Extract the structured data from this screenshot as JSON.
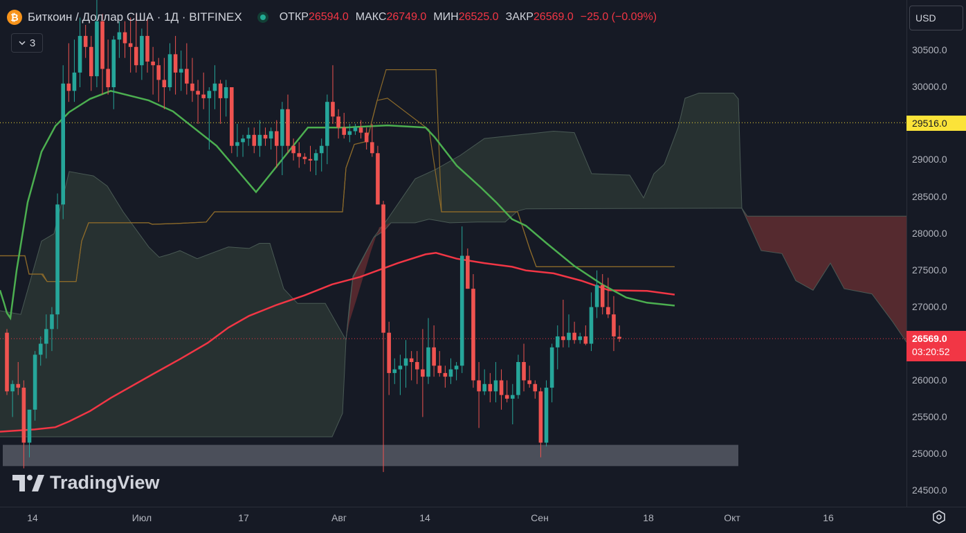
{
  "header": {
    "symbol_icon": "bitcoin-icon",
    "symbol_icon_glyph": "₿",
    "title": "Биткоин / Доллар США · 1Д · BITFINEX",
    "ohlc": {
      "open_label": "ОТКР",
      "open": "26594.0",
      "high_label": "МАКС",
      "high": "26749.0",
      "low_label": "МИН",
      "low": "26525.0",
      "close_label": "ЗАКР",
      "close": "26569.0",
      "change": "−25.0 (−0.09%)"
    }
  },
  "indicators_toggle": {
    "count": "3",
    "icon": "chevron-down-icon"
  },
  "currency": {
    "selected": "USD"
  },
  "price_axis": {
    "ticks": [
      "30500.0",
      "30000.0",
      "29516.0",
      "29000.0",
      "28500.0",
      "28000.0",
      "27500.0",
      "27000.0",
      "26569.0",
      "26000.0",
      "25500.0",
      "25000.0",
      "24500.0"
    ],
    "current_price": "26569.0",
    "countdown": "03:20:52",
    "marked_level": "29516.0"
  },
  "time_axis": {
    "ticks": [
      "14",
      "Июл",
      "17",
      "Авг",
      "14",
      "Сен",
      "18",
      "Окт",
      "16"
    ]
  },
  "watermark": {
    "brand": "TradingView",
    "icon": "tradingview-logo-icon"
  },
  "settings": {
    "icon": "gear-icon"
  },
  "colors": {
    "background": "#161a25",
    "up": "#26a69a",
    "down": "#ef5350",
    "sma_green": "#4caf50",
    "sma_red": "#f23645",
    "kumo_bull": "#2e3a36",
    "kumo_bear": "#5b2a30",
    "channel": "#8c6a2a"
  },
  "chart_data": {
    "type": "candlestick",
    "symbol": "Биткоин / Доллар США",
    "interval": "1Д",
    "exchange": "BITFINEX",
    "ylim": [
      24450,
      30950
    ],
    "candles": [
      [
        26650,
        26700,
        25800,
        25850
      ],
      [
        25850,
        26000,
        25500,
        25950
      ],
      [
        25950,
        26250,
        25800,
        25900
      ],
      [
        25900,
        26000,
        24800,
        25150
      ],
      [
        25150,
        25600,
        24950,
        25600
      ],
      [
        25600,
        26400,
        25450,
        26350
      ],
      [
        26350,
        26600,
        26200,
        26500
      ],
      [
        26500,
        26900,
        26300,
        26700
      ],
      [
        26700,
        27000,
        26400,
        26900
      ],
      [
        26900,
        28550,
        26700,
        28400
      ],
      [
        28400,
        30300,
        28200,
        30050
      ],
      [
        30050,
        30600,
        29800,
        29950
      ],
      [
        29950,
        30650,
        29800,
        30200
      ],
      [
        30200,
        30950,
        30000,
        30700
      ],
      [
        30700,
        30850,
        30400,
        30550
      ],
      [
        30550,
        30700,
        29950,
        30150
      ],
      [
        30150,
        31200,
        30000,
        30900
      ],
      [
        30900,
        31000,
        29900,
        30250
      ],
      [
        30250,
        30650,
        29900,
        30000
      ],
      [
        30000,
        30700,
        29700,
        30650
      ],
      [
        30650,
        30900,
        30400,
        30750
      ],
      [
        30750,
        30900,
        30400,
        30600
      ],
      [
        30600,
        30950,
        30200,
        30550
      ],
      [
        30550,
        31000,
        30200,
        30300
      ],
      [
        30300,
        30800,
        30100,
        30700
      ],
      [
        30700,
        30950,
        30200,
        30350
      ],
      [
        30350,
        30550,
        29900,
        30300
      ],
      [
        30300,
        30400,
        29800,
        30100
      ],
      [
        30100,
        30400,
        29700,
        30000
      ],
      [
        30000,
        30600,
        29950,
        30450
      ],
      [
        30450,
        30700,
        29900,
        30200
      ],
      [
        30200,
        30500,
        29950,
        30250
      ],
      [
        30250,
        30600,
        29900,
        30050
      ],
      [
        30050,
        30400,
        29800,
        29950
      ],
      [
        29950,
        30100,
        29500,
        29900
      ],
      [
        29900,
        30200,
        29700,
        29850
      ],
      [
        29850,
        30000,
        29150,
        29950
      ],
      [
        29950,
        30300,
        29700,
        30050
      ],
      [
        30050,
        30100,
        29500,
        29850
      ],
      [
        29850,
        30100,
        29600,
        30000
      ],
      [
        30000,
        30000,
        29100,
        29200
      ],
      [
        29200,
        29500,
        29050,
        29250
      ],
      [
        29250,
        29350,
        29050,
        29300
      ],
      [
        29300,
        29450,
        29200,
        29350
      ],
      [
        29350,
        29450,
        29100,
        29200
      ],
      [
        29200,
        29550,
        29050,
        29350
      ],
      [
        29350,
        29450,
        29200,
        29300
      ],
      [
        29300,
        29450,
        29150,
        29400
      ],
      [
        29400,
        29550,
        28900,
        29200
      ],
      [
        29200,
        29800,
        28800,
        29700
      ],
      [
        29700,
        29900,
        29100,
        29200
      ],
      [
        29200,
        29300,
        29000,
        29100
      ],
      [
        29100,
        29250,
        28900,
        29050
      ],
      [
        29050,
        29100,
        28950,
        29020
      ],
      [
        29020,
        29200,
        28850,
        29000
      ],
      [
        29000,
        29150,
        28800,
        29100
      ],
      [
        29100,
        29300,
        28850,
        29200
      ],
      [
        29200,
        29900,
        28950,
        29800
      ],
      [
        29800,
        30300,
        29500,
        29600
      ],
      [
        29600,
        29700,
        29300,
        29450
      ],
      [
        29450,
        29650,
        29300,
        29350
      ],
      [
        29350,
        29500,
        29250,
        29400
      ],
      [
        29400,
        29500,
        29350,
        29450
      ],
      [
        29450,
        29550,
        29300,
        29380
      ],
      [
        29380,
        29450,
        29150,
        29250
      ],
      [
        29250,
        29500,
        29050,
        29100
      ],
      [
        29100,
        29200,
        28400,
        28400
      ],
      [
        28400,
        28450,
        24750,
        26650
      ],
      [
        26650,
        26800,
        25800,
        26100
      ],
      [
        26100,
        26300,
        25950,
        26150
      ],
      [
        26150,
        26350,
        25800,
        26200
      ],
      [
        26200,
        26550,
        25900,
        26300
      ],
      [
        26300,
        26400,
        26000,
        26250
      ],
      [
        26250,
        26400,
        25950,
        26150
      ],
      [
        26150,
        26700,
        25500,
        26050
      ],
      [
        26050,
        26850,
        25950,
        26450
      ],
      [
        26450,
        26750,
        26050,
        26200
      ],
      [
        26200,
        26400,
        26050,
        26100
      ],
      [
        26100,
        26200,
        25900,
        26050
      ],
      [
        26050,
        26300,
        25950,
        26150
      ],
      [
        26150,
        26250,
        26000,
        26200
      ],
      [
        26200,
        28100,
        26100,
        27700
      ],
      [
        27700,
        27800,
        27250,
        27250
      ],
      [
        27250,
        27450,
        25900,
        26000
      ],
      [
        26000,
        26250,
        25350,
        25850
      ],
      [
        25850,
        26150,
        25800,
        25950
      ],
      [
        25950,
        26100,
        25700,
        25850
      ],
      [
        25850,
        26250,
        25700,
        26000
      ],
      [
        26000,
        26150,
        25600,
        25800
      ],
      [
        25800,
        26000,
        25700,
        25750
      ],
      [
        25750,
        25950,
        25400,
        25800
      ],
      [
        25800,
        26350,
        25750,
        26250
      ],
      [
        26250,
        26500,
        25850,
        26000
      ],
      [
        26000,
        26200,
        25900,
        25950
      ],
      [
        25950,
        26000,
        25750,
        25850
      ],
      [
        25850,
        25900,
        24950,
        25150
      ],
      [
        25150,
        26000,
        25100,
        25900
      ],
      [
        25900,
        26500,
        25700,
        26450
      ],
      [
        26450,
        26750,
        26150,
        26600
      ],
      [
        26600,
        27100,
        26450,
        26550
      ],
      [
        26550,
        26900,
        26450,
        26650
      ],
      [
        26650,
        26800,
        26500,
        26550
      ],
      [
        26550,
        26650,
        26500,
        26600
      ],
      [
        26600,
        26750,
        26480,
        26500
      ],
      [
        26500,
        27200,
        26400,
        27000
      ],
      [
        27000,
        27500,
        26850,
        27300
      ],
      [
        27300,
        27450,
        26900,
        27000
      ],
      [
        27000,
        27400,
        26850,
        26900
      ],
      [
        26900,
        27150,
        26400,
        26600
      ],
      [
        26594,
        26749,
        26525,
        26569
      ]
    ],
    "sma_green": [
      [
        0,
        27230
      ],
      [
        6,
        27050
      ],
      [
        10,
        26920
      ],
      [
        15,
        26850
      ],
      [
        24,
        27500
      ],
      [
        40,
        28430
      ],
      [
        60,
        29120
      ],
      [
        80,
        29470
      ],
      [
        100,
        29660
      ],
      [
        130,
        29840
      ],
      [
        160,
        29950
      ],
      [
        215,
        29820
      ],
      [
        250,
        29670
      ],
      [
        313,
        29200
      ],
      [
        370,
        28570
      ],
      [
        445,
        29450
      ],
      [
        500,
        29450
      ],
      [
        560,
        29480
      ],
      [
        615,
        29450
      ],
      [
        628,
        29320
      ],
      [
        660,
        28930
      ],
      [
        695,
        28630
      ],
      [
        717,
        28430
      ],
      [
        740,
        28200
      ],
      [
        760,
        28110
      ],
      [
        790,
        27870
      ],
      [
        830,
        27560
      ],
      [
        870,
        27310
      ],
      [
        905,
        27130
      ],
      [
        935,
        27060
      ],
      [
        975,
        27020
      ]
    ],
    "sma_red": [
      [
        0,
        25300
      ],
      [
        50,
        25330
      ],
      [
        80,
        25360
      ],
      [
        100,
        25440
      ],
      [
        130,
        25580
      ],
      [
        160,
        25760
      ],
      [
        220,
        26080
      ],
      [
        260,
        26290
      ],
      [
        300,
        26510
      ],
      [
        330,
        26720
      ],
      [
        360,
        26880
      ],
      [
        400,
        27030
      ],
      [
        440,
        27160
      ],
      [
        480,
        27310
      ],
      [
        520,
        27410
      ],
      [
        575,
        27600
      ],
      [
        615,
        27720
      ],
      [
        630,
        27740
      ],
      [
        660,
        27660
      ],
      [
        700,
        27600
      ],
      [
        740,
        27550
      ],
      [
        760,
        27500
      ],
      [
        800,
        27460
      ],
      [
        840,
        27360
      ],
      [
        880,
        27230
      ],
      [
        935,
        27220
      ],
      [
        975,
        27170
      ]
    ],
    "channel_upper": [
      [
        0,
        27700
      ],
      [
        36,
        27700
      ],
      [
        42,
        27450
      ],
      [
        48,
        27450
      ],
      [
        62,
        27450
      ],
      [
        68,
        27350
      ],
      [
        110,
        27350
      ],
      [
        118,
        27900
      ],
      [
        128,
        28150
      ],
      [
        215,
        28150
      ],
      [
        220,
        28130
      ],
      [
        255,
        28140
      ],
      [
        298,
        28160
      ],
      [
        310,
        28300
      ],
      [
        495,
        28300
      ],
      [
        500,
        28900
      ],
      [
        512,
        29220
      ],
      [
        530,
        29260
      ],
      [
        545,
        29820
      ],
      [
        558,
        30240
      ],
      [
        630,
        30240
      ],
      [
        638,
        28300
      ],
      [
        748,
        28300
      ],
      [
        766,
        27780
      ],
      [
        775,
        27550
      ],
      [
        975,
        27550
      ]
    ],
    "channel_lower": [
      [
        0,
        27700
      ],
      [
        36,
        27700
      ],
      [
        42,
        27450
      ],
      [
        60,
        27450
      ],
      [
        68,
        27350
      ],
      [
        110,
        27350
      ],
      [
        118,
        27900
      ],
      [
        128,
        28150
      ],
      [
        215,
        28150
      ],
      [
        220,
        28130
      ],
      [
        255,
        28140
      ],
      [
        298,
        28160
      ],
      [
        310,
        28300
      ],
      [
        495,
        28300
      ],
      [
        500,
        28900
      ],
      [
        512,
        29220
      ],
      [
        530,
        29260
      ],
      [
        545,
        29820
      ],
      [
        560,
        29850
      ],
      [
        620,
        29420
      ],
      [
        638,
        28300
      ],
      [
        748,
        28300
      ],
      [
        766,
        27780
      ],
      [
        775,
        27550
      ],
      [
        975,
        27550
      ]
    ],
    "kumo_upper": [
      [
        0,
        26950
      ],
      [
        30,
        26900
      ],
      [
        60,
        27900
      ],
      [
        78,
        28000
      ],
      [
        100,
        28850
      ],
      [
        135,
        28790
      ],
      [
        155,
        28650
      ],
      [
        178,
        28300
      ],
      [
        215,
        27820
      ],
      [
        230,
        27680
      ],
      [
        245,
        27720
      ],
      [
        260,
        27770
      ],
      [
        285,
        27660
      ],
      [
        310,
        27750
      ],
      [
        330,
        27820
      ],
      [
        360,
        27800
      ],
      [
        375,
        27870
      ],
      [
        390,
        27870
      ],
      [
        410,
        27250
      ],
      [
        430,
        27050
      ],
      [
        470,
        27050
      ],
      [
        500,
        26550
      ],
      [
        510,
        27400
      ],
      [
        540,
        27950
      ],
      [
        560,
        28200
      ],
      [
        600,
        28750
      ],
      [
        630,
        28880
      ],
      [
        665,
        29070
      ],
      [
        700,
        29300
      ],
      [
        760,
        29360
      ],
      [
        800,
        29400
      ],
      [
        830,
        29380
      ],
      [
        855,
        28820
      ],
      [
        910,
        28800
      ],
      [
        930,
        28490
      ],
      [
        945,
        28820
      ],
      [
        960,
        28950
      ],
      [
        980,
        29450
      ],
      [
        990,
        29850
      ],
      [
        1010,
        29920
      ],
      [
        1060,
        29920
      ],
      [
        1067,
        29840
      ],
      [
        1072,
        28350
      ],
      [
        1100,
        27770
      ],
      [
        1130,
        27730
      ],
      [
        1150,
        27360
      ],
      [
        1175,
        27230
      ],
      [
        1200,
        27600
      ],
      [
        1220,
        27250
      ],
      [
        1260,
        27180
      ],
      [
        1290,
        26800
      ],
      [
        1310,
        26520
      ]
    ],
    "kumo_lower": [
      [
        0,
        25230
      ],
      [
        110,
        25230
      ],
      [
        480,
        25230
      ],
      [
        495,
        25550
      ],
      [
        500,
        26550
      ],
      [
        505,
        27030
      ],
      [
        510,
        27420
      ],
      [
        540,
        27950
      ],
      [
        555,
        28040
      ],
      [
        565,
        28150
      ],
      [
        600,
        28150
      ],
      [
        620,
        28200
      ],
      [
        650,
        28150
      ],
      [
        690,
        28160
      ],
      [
        730,
        28160
      ],
      [
        748,
        28310
      ],
      [
        760,
        28340
      ],
      [
        1060,
        28350
      ],
      [
        1072,
        28350
      ],
      [
        1080,
        28240
      ],
      [
        1100,
        28240
      ],
      [
        1310,
        28240
      ]
    ],
    "support_zone": {
      "from": 24830,
      "to": 25120
    },
    "levels": [
      29516,
      26569
    ]
  }
}
